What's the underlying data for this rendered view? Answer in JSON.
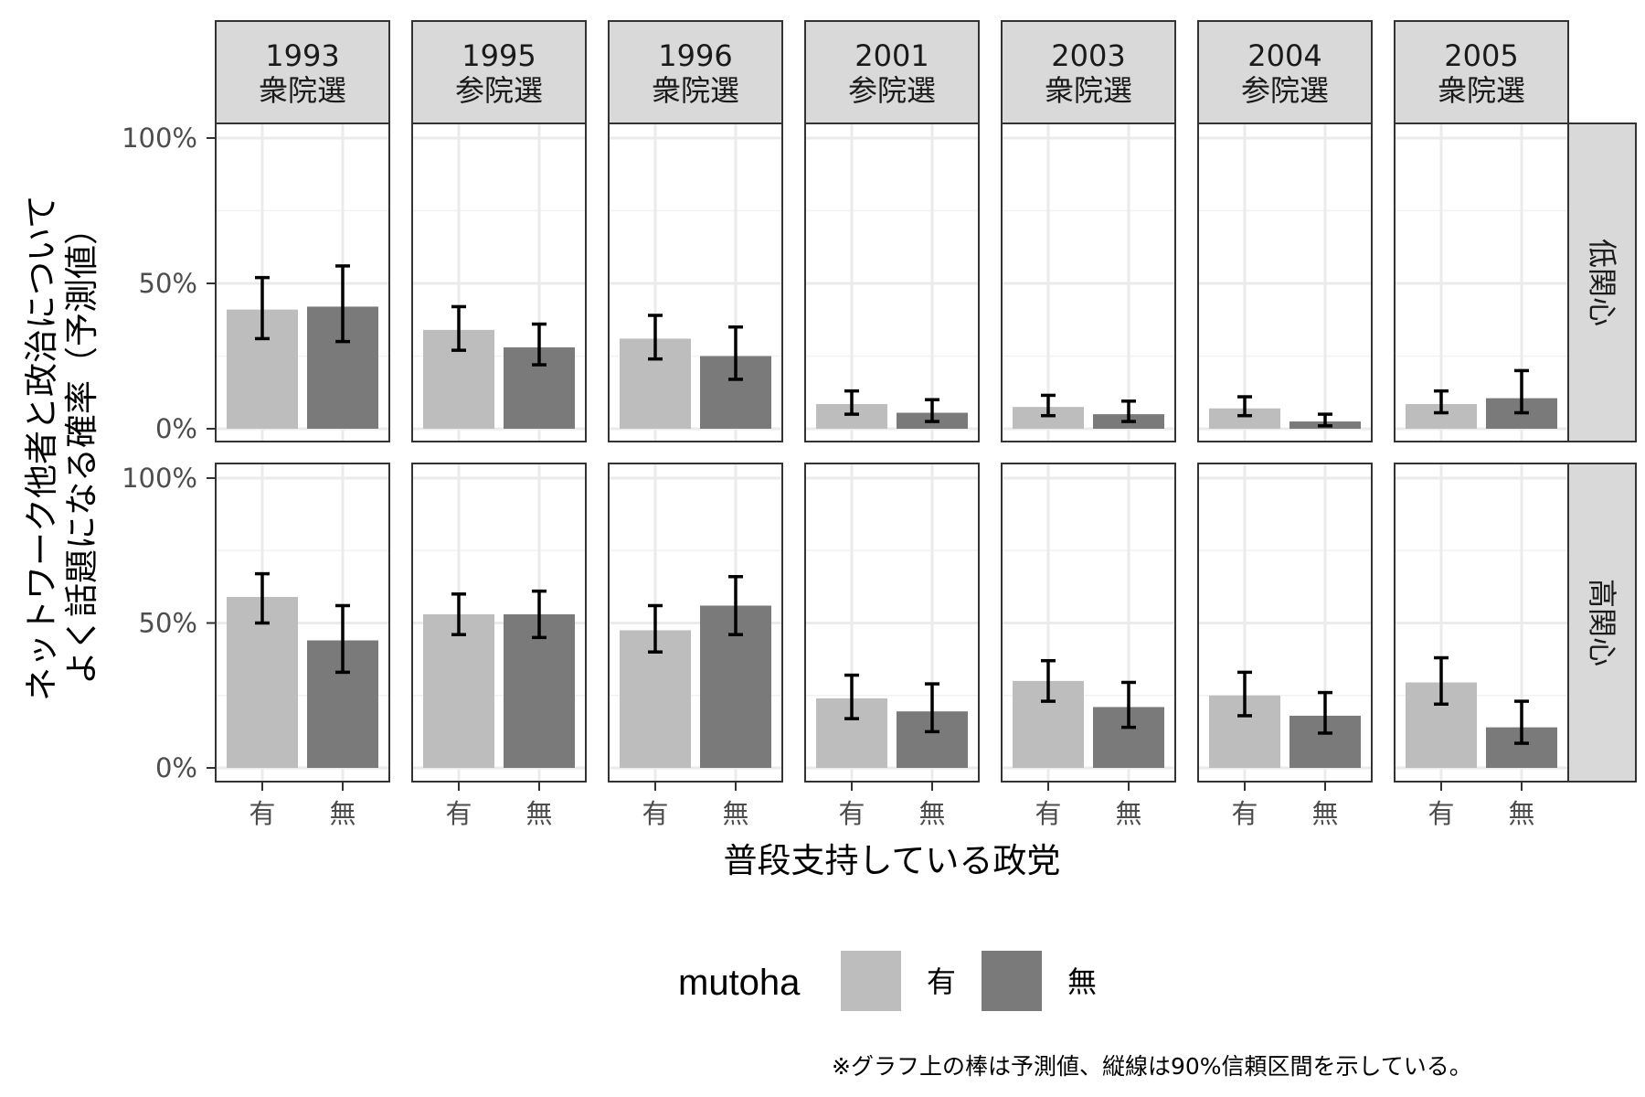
{
  "chart_data": {
    "type": "bar",
    "ylabel_lines": [
      "ネットワーク他者と政治について",
      "よく話題になる確率（予測値）"
    ],
    "xlabel": "普段支持している政党",
    "categories": [
      "有",
      "無"
    ],
    "y_ticks": [
      "0%",
      "50%",
      "100%"
    ],
    "ylim": [
      0,
      100
    ],
    "grid": true,
    "legend": {
      "title": "mutoha",
      "position": "bottom",
      "entries": [
        {
          "label": "有",
          "color": "#bdbdbd"
        },
        {
          "label": "無",
          "color": "#7a7a7a"
        }
      ]
    },
    "panels_columns": [
      {
        "year": "1993",
        "type": "衆院選"
      },
      {
        "year": "1995",
        "type": "参院選"
      },
      {
        "year": "1996",
        "type": "衆院選"
      },
      {
        "year": "2001",
        "type": "参院選"
      },
      {
        "year": "2003",
        "type": "衆院選"
      },
      {
        "year": "2004",
        "type": "参院選"
      },
      {
        "year": "2005",
        "type": "衆院選"
      }
    ],
    "panels_rows": [
      {
        "label": "低関心",
        "values": [
          [
            41,
            42
          ],
          [
            34,
            28
          ],
          [
            31,
            25
          ],
          [
            8.5,
            5.5
          ],
          [
            7.5,
            5
          ],
          [
            7,
            2.5
          ],
          [
            8.5,
            10.5
          ]
        ],
        "ci_lower": [
          [
            31,
            30
          ],
          [
            27,
            22
          ],
          [
            24,
            17
          ],
          [
            5,
            2.5
          ],
          [
            4.5,
            2.5
          ],
          [
            4.5,
            1
          ],
          [
            5.5,
            5.5
          ]
        ],
        "ci_upper": [
          [
            52,
            56
          ],
          [
            42,
            36
          ],
          [
            39,
            35
          ],
          [
            13,
            10
          ],
          [
            11.5,
            9.5
          ],
          [
            11,
            5
          ],
          [
            13,
            20
          ]
        ]
      },
      {
        "label": "高関心",
        "values": [
          [
            59,
            44
          ],
          [
            53,
            53
          ],
          [
            47.5,
            56
          ],
          [
            24,
            19.5
          ],
          [
            30,
            21
          ],
          [
            25,
            18
          ],
          [
            29.5,
            14
          ]
        ],
        "ci_lower": [
          [
            50,
            33
          ],
          [
            46,
            45
          ],
          [
            40,
            46
          ],
          [
            17,
            12.5
          ],
          [
            23,
            14
          ],
          [
            18,
            12
          ],
          [
            22,
            8.5
          ]
        ],
        "ci_upper": [
          [
            67,
            56
          ],
          [
            60,
            61
          ],
          [
            56,
            66
          ],
          [
            32,
            29
          ],
          [
            37,
            29.5
          ],
          [
            33,
            26
          ],
          [
            38,
            23
          ]
        ]
      }
    ],
    "error_bar_color": "#000000",
    "note": "※グラフ上の棒は予測値、縦線は90%信頼区間を示している。"
  }
}
